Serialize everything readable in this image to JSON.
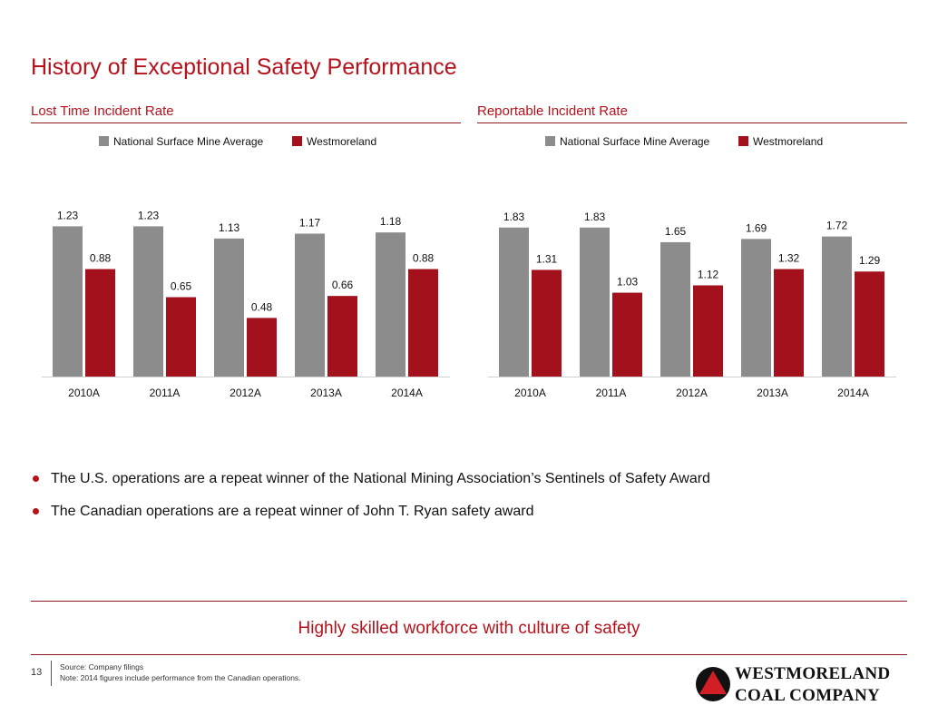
{
  "page": {
    "title": "History of Exceptional Safety Performance",
    "page_number": "13",
    "tagline": "Highly skilled workforce with culture of safety",
    "footnote_source": "Source: Company filings",
    "footnote_note": "Note: 2014 figures include performance from the Canadian operations.",
    "bullets": [
      "The U.S. operations are a repeat winner of the National Mining Association’s Sentinels of Safety Award",
      "The Canadian operations are a repeat winner of John T. Ryan safety award"
    ],
    "logo": {
      "line1": "WESTMORELAND",
      "line2": "COAL COMPANY"
    }
  },
  "colors": {
    "accent": "#B5121B",
    "gray_bar": "#8C8C8C",
    "red_bar": "#A3121C",
    "rule": "#8B1A1F"
  },
  "chart_data": [
    {
      "type": "bar",
      "title": "Lost Time Incident Rate",
      "categories": [
        "2010A",
        "2011A",
        "2012A",
        "2013A",
        "2014A"
      ],
      "series": [
        {
          "name": "National Surface Mine Average",
          "values": [
            1.23,
            1.23,
            1.13,
            1.17,
            1.18
          ]
        },
        {
          "name": "Westmoreland",
          "values": [
            0.88,
            0.65,
            0.48,
            0.66,
            0.88
          ]
        }
      ],
      "ylim": [
        0,
        1.3
      ],
      "legend": "top",
      "grid": false
    },
    {
      "type": "bar",
      "title": "Reportable Incident Rate",
      "categories": [
        "2010A",
        "2011A",
        "2012A",
        "2013A",
        "2014A"
      ],
      "series": [
        {
          "name": "National Surface Mine Average",
          "values": [
            1.83,
            1.83,
            1.65,
            1.69,
            1.72
          ]
        },
        {
          "name": "Westmoreland",
          "values": [
            1.31,
            1.03,
            1.12,
            1.32,
            1.29
          ]
        }
      ],
      "ylim": [
        0,
        1.95
      ],
      "legend": "top",
      "grid": false
    }
  ]
}
